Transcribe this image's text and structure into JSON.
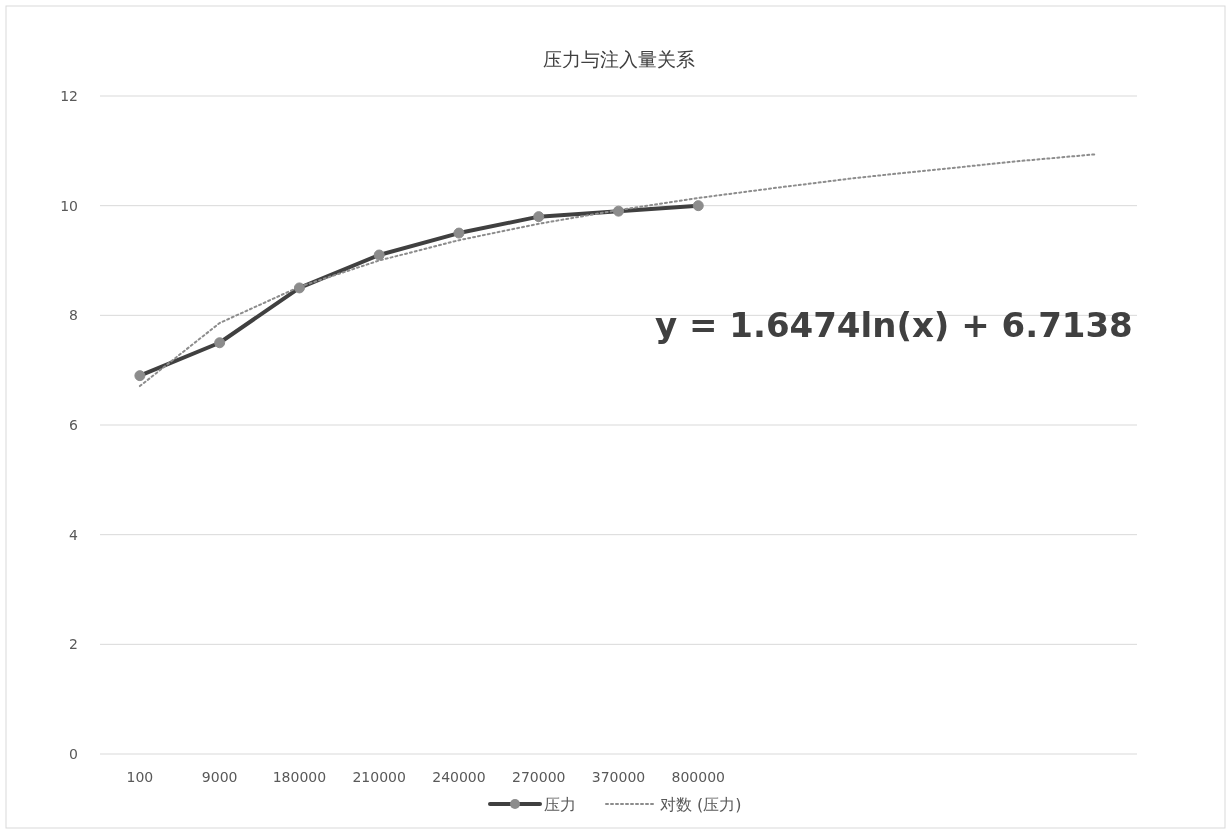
{
  "chart_data": {
    "type": "line",
    "title": "压力与注入量关系",
    "categories": [
      "100",
      "9000",
      "180000",
      "210000",
      "240000",
      "270000",
      "370000",
      "800000",
      null,
      null,
      null,
      null,
      null
    ],
    "series": [
      {
        "name": "压力",
        "color": "#404040",
        "marker": "circle",
        "line_style": "solid",
        "values": [
          6.9,
          7.5,
          8.5,
          9.1,
          9.5,
          9.8,
          9.9,
          10.0,
          null,
          null,
          null,
          null,
          null
        ]
      },
      {
        "name": "对数 (压力)",
        "color": "#8c8c8c",
        "marker": "none",
        "line_style": "dotted",
        "values": [
          6.71,
          7.86,
          8.52,
          9.0,
          9.37,
          9.67,
          9.92,
          10.14,
          10.33,
          10.51,
          10.66,
          10.81,
          10.94
        ]
      }
    ],
    "ylim": [
      0,
      12
    ],
    "yticks": [
      0,
      2,
      4,
      6,
      8,
      10,
      12
    ],
    "grid": "y",
    "legend": "bottom",
    "annotations": [
      "y = 1.6474ln(x) + 6.7138"
    ]
  }
}
